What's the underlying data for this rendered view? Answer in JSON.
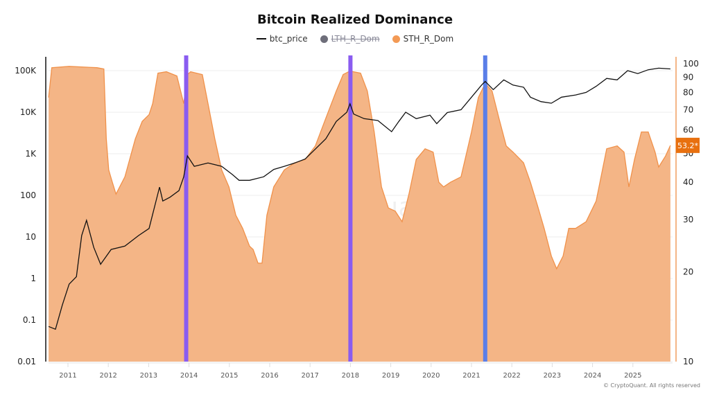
{
  "title": "Bitcoin Realized Dominance",
  "legend": [
    {
      "label": "btc_price",
      "color": "#111111",
      "hidden": false
    },
    {
      "label": "LTH_R_Dom",
      "color": "#6e6e7a",
      "hidden": true
    },
    {
      "label": "STH_R_Dom",
      "color": "#f39a55",
      "hidden": false
    }
  ],
  "watermark": "CryptoQuant",
  "copyright": "© CryptoQuant. All rights reserved",
  "chart_data": {
    "type": "line",
    "title": "Bitcoin Realized Dominance",
    "grid": true,
    "legend_position": "top",
    "x_ticks": [
      "2011",
      "2012",
      "2013",
      "2014",
      "2015",
      "2016",
      "2017",
      "2018",
      "2019",
      "2020",
      "2021",
      "2022",
      "2023",
      "2024",
      "2025"
    ],
    "x_range": [
      2010.5,
      2025.95
    ],
    "left_axis": {
      "scale": "log",
      "range": [
        0.01,
        100000
      ],
      "ticks": [
        "100K",
        "10K",
        "1K",
        "100",
        "10",
        "1",
        "0.1",
        "0.01"
      ]
    },
    "right_axis": {
      "scale": "log",
      "range": [
        10,
        100
      ],
      "ticks": [
        "100",
        "90",
        "80",
        "70",
        "60",
        "50",
        "40",
        "30",
        "20",
        "10"
      ]
    },
    "last_value_badge": "53.2*",
    "badge_color": "#e8700f",
    "highlight_lines": [
      {
        "x": 2013.93,
        "color": "#8a5cf0"
      },
      {
        "x": 2018.0,
        "color": "#8a5cf0"
      },
      {
        "x": 2021.34,
        "color": "#5a7ee8"
      }
    ],
    "series": [
      {
        "name": "btc_price",
        "axis": "left",
        "color": "#111111",
        "x": [
          2010.52,
          2010.69,
          2010.86,
          2011.03,
          2011.21,
          2011.34,
          2011.46,
          2011.64,
          2011.81,
          2012.07,
          2012.41,
          2012.75,
          2013.01,
          2013.27,
          2013.35,
          2013.53,
          2013.75,
          2013.87,
          2013.96,
          2014.13,
          2014.47,
          2014.81,
          2015.07,
          2015.24,
          2015.5,
          2015.85,
          2016.1,
          2016.36,
          2016.62,
          2016.88,
          2017.13,
          2017.39,
          2017.65,
          2017.91,
          2017.99,
          2018.08,
          2018.34,
          2018.68,
          2019.02,
          2019.2,
          2019.37,
          2019.63,
          2019.97,
          2020.14,
          2020.4,
          2020.74,
          2021.0,
          2021.26,
          2021.34,
          2021.54,
          2021.8,
          2022.03,
          2022.29,
          2022.46,
          2022.72,
          2022.98,
          2023.23,
          2023.58,
          2023.84,
          2024.09,
          2024.35,
          2024.61,
          2024.87,
          2025.12,
          2025.38,
          2025.64,
          2025.93
        ],
        "y": [
          0.07,
          0.06,
          0.23,
          0.73,
          1.1,
          10.8,
          25,
          5.6,
          2.2,
          5,
          6,
          10.8,
          16,
          158,
          73,
          90,
          130,
          280,
          890,
          500,
          600,
          500,
          320,
          230,
          230,
          280,
          420,
          500,
          600,
          750,
          1300,
          2300,
          6000,
          10000,
          16000,
          9000,
          7000,
          6300,
          3400,
          6000,
          10000,
          7000,
          8500,
          5300,
          9800,
          11500,
          23000,
          46000,
          55000,
          35000,
          60000,
          45000,
          40000,
          23000,
          18000,
          16500,
          23000,
          26000,
          30000,
          42000,
          65000,
          60000,
          100000,
          85000,
          105000,
          115000,
          110000
        ]
      },
      {
        "name": "STH_R_Dom",
        "axis": "right",
        "color": "#f0914a",
        "fill": "#f4b586",
        "x": [
          2010.52,
          2010.6,
          2011.03,
          2011.72,
          2011.89,
          2011.95,
          2012.01,
          2012.1,
          2012.19,
          2012.41,
          2012.67,
          2012.84,
          2013.01,
          2013.1,
          2013.23,
          2013.44,
          2013.7,
          2013.87,
          2013.96,
          2014.04,
          2014.33,
          2014.47,
          2014.64,
          2014.81,
          2014.99,
          2015.16,
          2015.33,
          2015.5,
          2015.59,
          2015.71,
          2015.81,
          2015.93,
          2016.1,
          2016.36,
          2016.62,
          2016.88,
          2017.13,
          2017.39,
          2017.65,
          2017.82,
          2017.99,
          2018.25,
          2018.42,
          2018.59,
          2018.77,
          2018.94,
          2019.11,
          2019.28,
          2019.45,
          2019.63,
          2019.85,
          2020.05,
          2020.19,
          2020.31,
          2020.48,
          2020.74,
          2021.0,
          2021.17,
          2021.34,
          2021.51,
          2021.68,
          2021.86,
          2022.03,
          2022.29,
          2022.46,
          2022.63,
          2022.8,
          2022.98,
          2023.11,
          2023.27,
          2023.41,
          2023.58,
          2023.84,
          2024.09,
          2024.35,
          2024.61,
          2024.78,
          2024.9,
          2025.04,
          2025.21,
          2025.38,
          2025.55,
          2025.64,
          2025.81,
          2025.93
        ],
        "y": [
          77,
          97,
          98,
          97,
          96,
          56,
          44,
          40,
          36.5,
          41.7,
          56,
          64,
          67.5,
          73.5,
          93,
          94,
          91,
          73.5,
          92,
          94,
          92,
          73.5,
          56,
          44,
          38.6,
          31,
          28,
          24.4,
          23.8,
          21.4,
          21.4,
          31,
          38.6,
          44,
          46.5,
          47.7,
          53,
          65.6,
          81,
          92,
          94.5,
          93,
          81,
          59,
          38.6,
          32.8,
          32,
          29.5,
          36.5,
          47.7,
          51.8,
          50.5,
          40,
          38.6,
          40,
          41.7,
          59,
          77,
          86,
          81,
          65.6,
          53,
          50.5,
          46.5,
          40,
          33.6,
          28,
          22.6,
          20.5,
          22.6,
          28,
          28,
          29.5,
          34.6,
          51.8,
          53,
          50.5,
          38.6,
          47.7,
          59,
          59,
          50.5,
          45,
          49,
          53.2
        ]
      }
    ]
  }
}
